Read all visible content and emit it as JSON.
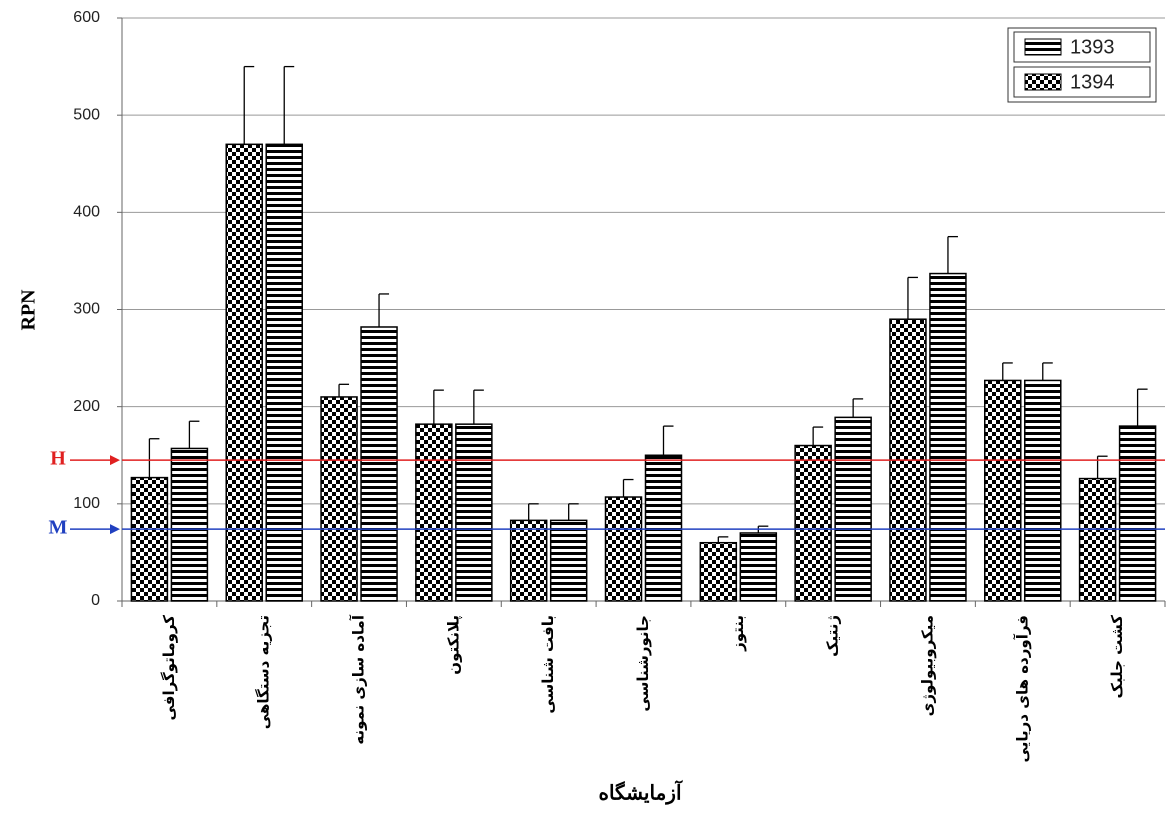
{
  "chart_data": {
    "type": "bar",
    "x_label": "آزمایشگاه",
    "y_label": "RPN",
    "categories": [
      "کروماتوگرافی",
      "تجزیه دستگاهی",
      "آماده سازی نمونه",
      "پلانکتون",
      "بافت شناسی",
      "جانورشناسی",
      "بنتوز",
      "ژنتیک",
      "میکروبیولوژی",
      "فرآورده های دریایی",
      "کشت جلبک"
    ],
    "series": [
      {
        "name": "1393",
        "color": "#000000",
        "pattern": "stripes",
        "values": [
          157,
          470,
          282,
          182,
          83,
          150,
          70,
          189,
          337,
          227,
          180
        ],
        "errors": [
          28,
          80,
          34,
          35,
          17,
          30,
          7,
          19,
          38,
          18,
          38
        ]
      },
      {
        "name": "1394",
        "color": "#000000",
        "pattern": "checker",
        "values": [
          127,
          470,
          210,
          182,
          83,
          107,
          60,
          160,
          290,
          227,
          126
        ],
        "errors": [
          40,
          80,
          13,
          35,
          17,
          18,
          6,
          19,
          43,
          18,
          23
        ]
      }
    ],
    "reference_lines": [
      {
        "label": "H",
        "value": 145,
        "color": "#e02020"
      },
      {
        "label": "M",
        "value": 74,
        "color": "#2040c0"
      }
    ],
    "ylim": [
      0,
      600
    ],
    "yticks": [
      0,
      100,
      200,
      300,
      400,
      500,
      600
    ],
    "grid": true,
    "legend": "top-right"
  }
}
